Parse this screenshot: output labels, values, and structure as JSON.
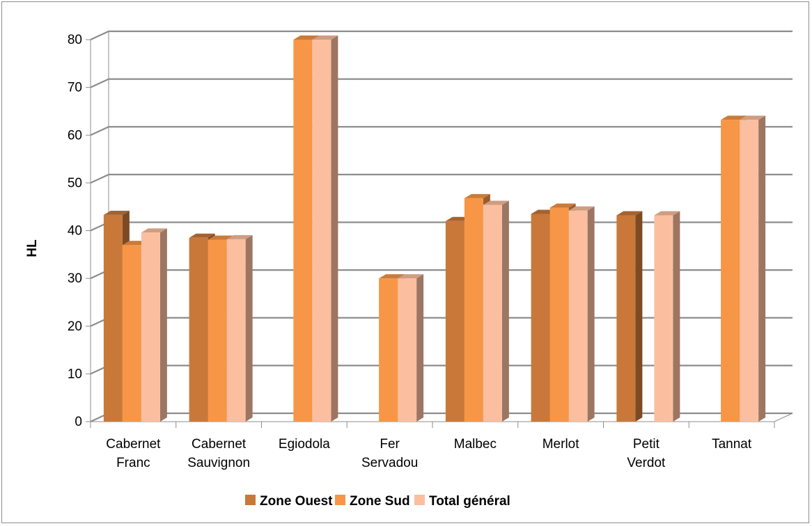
{
  "chart_data": {
    "type": "bar",
    "ylabel": "HL",
    "xlabel": "",
    "ylim": [
      0,
      80
    ],
    "yticks": [
      0,
      10,
      20,
      30,
      40,
      50,
      60,
      70,
      80
    ],
    "grid": true,
    "legend_position": "bottom",
    "categories": [
      [
        "Cabernet",
        "Franc"
      ],
      [
        "Cabernet",
        "Sauvignon"
      ],
      [
        "Egiodola"
      ],
      [
        "Fer",
        "Servadou"
      ],
      [
        "Malbec"
      ],
      [
        "Merlot"
      ],
      [
        "Petit",
        "Verdot"
      ],
      [
        "Tannat"
      ]
    ],
    "series": [
      {
        "name": "Zone Ouest",
        "color": "#C9783A",
        "values": [
          43.3,
          38.5,
          null,
          null,
          42.0,
          43.5,
          43.2,
          null
        ]
      },
      {
        "name": "Zone Sud",
        "color": "#F79646",
        "values": [
          37.0,
          38.1,
          80.0,
          30.0,
          46.8,
          44.8,
          null,
          63.2
        ]
      },
      {
        "name": "Total général",
        "color": "#FBBF9F",
        "values": [
          39.6,
          38.2,
          80.0,
          30.0,
          45.4,
          44.2,
          43.2,
          63.2
        ]
      }
    ]
  }
}
